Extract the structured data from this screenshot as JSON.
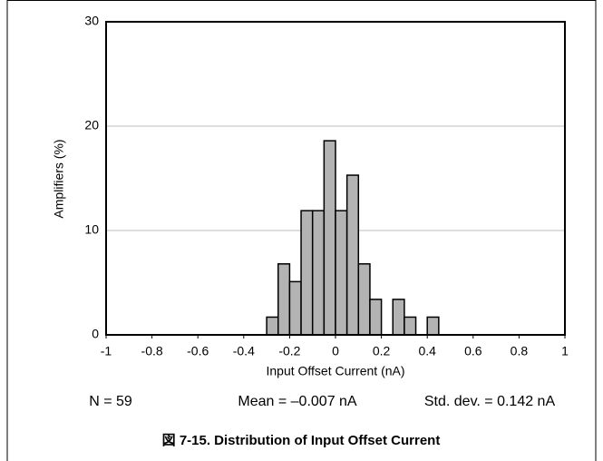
{
  "chart_data": {
    "type": "histogram",
    "x_label": "Input Offset Current (nA)",
    "y_label": "Amplifiers (%)",
    "bins": [
      -0.3,
      -0.25,
      -0.2,
      -0.15,
      -0.1,
      -0.05,
      0,
      0.05,
      0.1,
      0.15,
      0.2,
      0.25,
      0.3,
      0.35,
      0.4,
      0.45
    ],
    "values": [
      1.7,
      6.8,
      5.1,
      11.9,
      11.9,
      18.6,
      11.9,
      15.3,
      6.8,
      3.4,
      0,
      3.4,
      1.7,
      0,
      1.7
    ],
    "color": "#b3b3b3",
    "xlim": [
      -1,
      1
    ],
    "xticks": [
      -1,
      -0.8,
      -0.6,
      -0.4,
      -0.2,
      0,
      0.2,
      0.4,
      0.6,
      0.8,
      1
    ],
    "ylim": [
      0,
      30
    ],
    "yticks": [
      0,
      10,
      20,
      30
    ],
    "grid": true,
    "annotations": [
      "N = 59",
      "Mean = –0.007 nA",
      "Std. dev. = 0.142 nA"
    ],
    "caption": "図 7-15. Distribution of Input Offset Current"
  }
}
